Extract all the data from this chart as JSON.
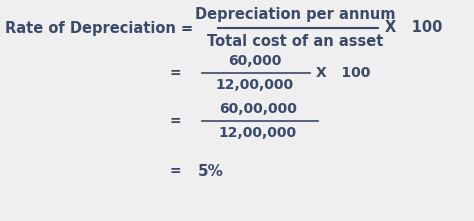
{
  "bg_color": "#efefef",
  "text_color": "#3a4a6b",
  "line1_left": "Rate of Depreciation = ",
  "line1_numerator": "Depreciation per annum",
  "line1_denominator": "Total cost of an asset",
  "line1_right": "X   100",
  "line2_eq": "=",
  "line2_numerator": "60,000",
  "line2_denominator": "12,00,000",
  "line2_right": "X   100",
  "line3_eq": "=",
  "line3_numerator": "60,00,000",
  "line3_denominator": "12,00,000",
  "line4_eq": "=",
  "line4_right": "5%",
  "fontsize_main": 10.5,
  "fontsize_sub": 10
}
